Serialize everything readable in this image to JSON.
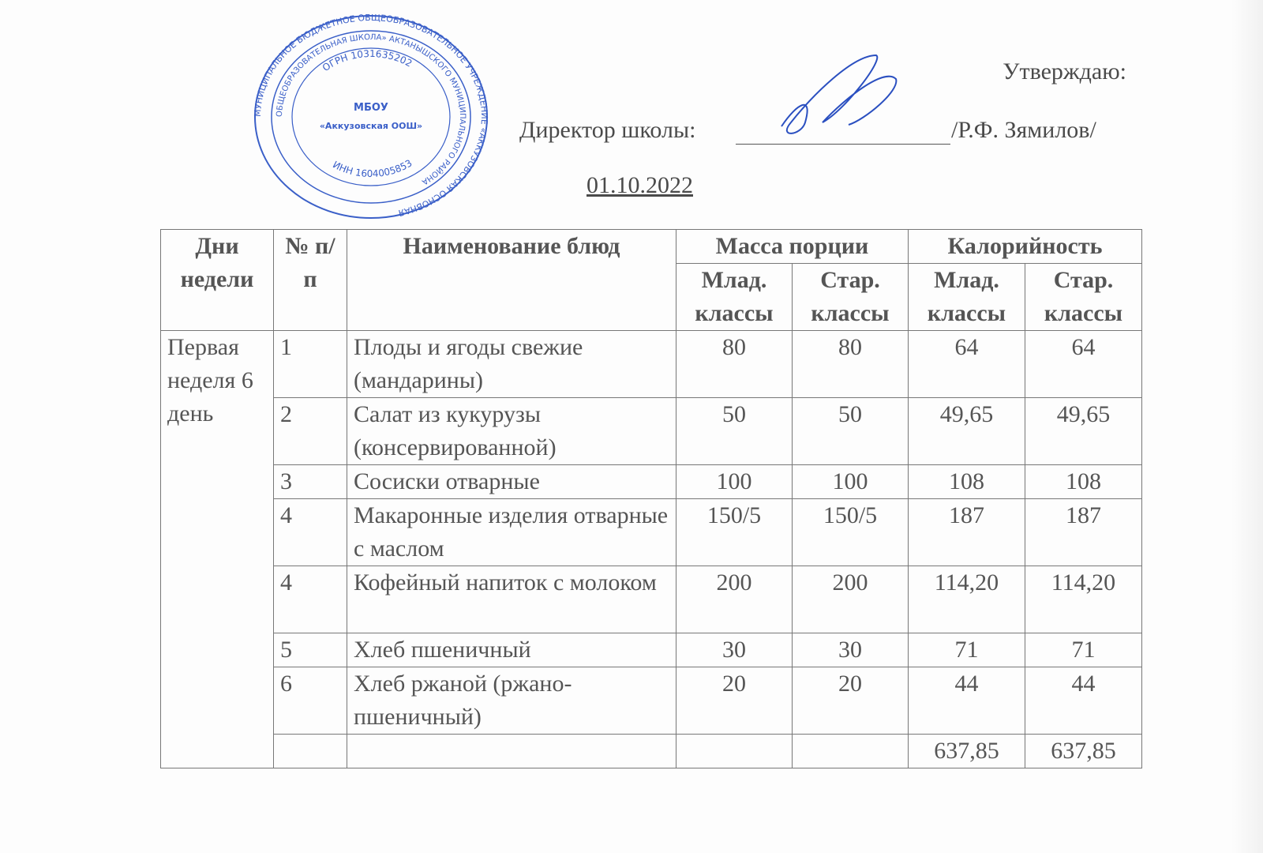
{
  "header": {
    "approve": "Утверждаю:",
    "director_label": "Директор школы:",
    "director_name": "/Р.Ф. Зямилов/",
    "date": "01.10.2022"
  },
  "stamp": {
    "outer": "МУНИЦИПАЛЬНОЕ БЮДЖЕТНОЕ ОБЩЕОБРАЗОВАТЕЛЬНОЕ УЧРЕЖДЕНИЕ «АККУЗОВСКАЯ ОСНОВНАЯ",
    "inner": "ОБЩЕОБРАЗОВАТЕЛЬНАЯ ШКОЛА» АКТАНЫШСКОГО МУНИЦИПАЛЬНОГО РАЙОНА",
    "ogrn": "ОГРН 1031635202",
    "inn": "ИНН 1604005853",
    "center1": "МБОУ",
    "center2": "«Аккузовская ООШ»",
    "color": "#3a5fc8"
  },
  "table": {
    "headers": {
      "day": "Дни недели",
      "num": "№ п/п",
      "name": "Наименование блюд",
      "mass": "Масса порции",
      "cal": "Калорийность",
      "junior": "Млад. классы",
      "senior": "Стар. классы"
    },
    "day_label": "Первая неделя 6 день",
    "rows": [
      {
        "num": "1",
        "name": "Плоды и ягоды свежие (мандарины)",
        "mj": "80",
        "ms": "80",
        "cj": "64",
        "cs": "64"
      },
      {
        "num": "2",
        "name": "Салат из кукурузы (консервированной)",
        "mj": "50",
        "ms": "50",
        "cj": "49,65",
        "cs": "49,65"
      },
      {
        "num": "3",
        "name": "Сосиски отварные",
        "mj": "100",
        "ms": "100",
        "cj": "108",
        "cs": "108"
      },
      {
        "num": "4",
        "name": "Макаронные изделия отварные с маслом",
        "mj": "150/5",
        "ms": "150/5",
        "cj": "187",
        "cs": "187"
      },
      {
        "num": "4",
        "name": "Кофейный напиток  с молоком",
        "mj": "200",
        "ms": "200",
        "cj": "114,20",
        "cs": "114,20"
      },
      {
        "num": "5",
        "name": "Хлеб пшеничный",
        "mj": "30",
        "ms": "30",
        "cj": "71",
        "cs": "71"
      },
      {
        "num": "6",
        "name": "Хлеб ржаной (ржано-пшеничный)",
        "mj": "20",
        "ms": "20",
        "cj": "44",
        "cs": "44"
      }
    ],
    "total": {
      "cj": "637,85",
      "cs": "637,85"
    }
  }
}
